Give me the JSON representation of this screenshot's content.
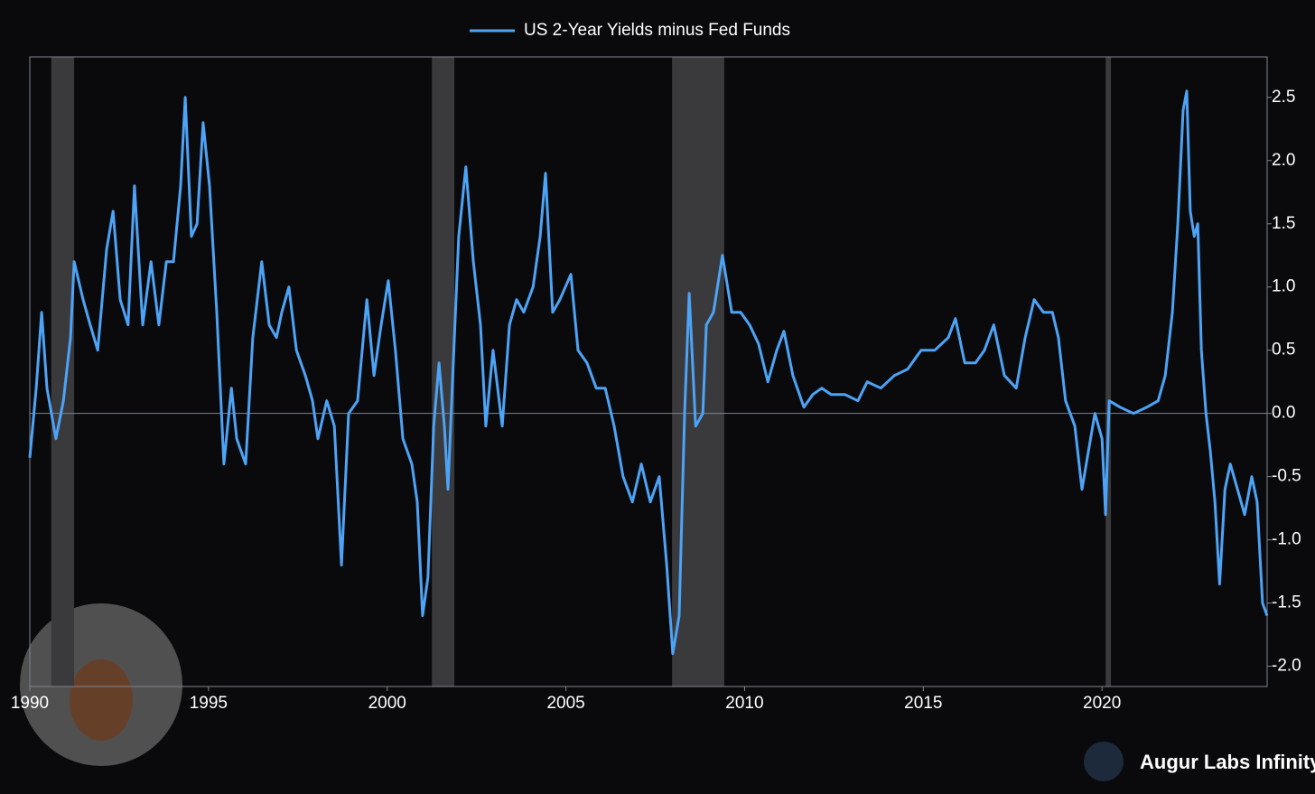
{
  "chart_data": {
    "type": "line",
    "legend": "top",
    "series": [
      {
        "name": "US 2-Year Yields minus Fed Funds",
        "color": "#4da3f5",
        "x": [
          1990.0,
          1990.18,
          1990.33,
          1990.48,
          1990.73,
          1990.94,
          1991.14,
          1991.24,
          1991.49,
          1991.69,
          1991.9,
          1992.15,
          1992.33,
          1992.53,
          1992.75,
          1992.93,
          1993.16,
          1993.39,
          1993.61,
          1993.82,
          1994.02,
          1994.22,
          1994.35,
          1994.52,
          1994.68,
          1994.85,
          1995.03,
          1995.23,
          1995.43,
          1995.64,
          1995.79,
          1996.04,
          1996.24,
          1996.49,
          1996.7,
          1996.9,
          1997.05,
          1997.25,
          1997.46,
          1997.71,
          1997.91,
          1998.06,
          1998.31,
          1998.52,
          1998.72,
          1998.92,
          1999.17,
          1999.43,
          1999.63,
          1999.83,
          2000.03,
          2000.23,
          2000.44,
          2000.69,
          2000.84,
          2000.99,
          2001.14,
          2001.3,
          2001.45,
          2001.6,
          2001.7,
          2001.85,
          2002.0,
          2002.2,
          2002.41,
          2002.61,
          2002.76,
          2002.96,
          2003.22,
          2003.42,
          2003.62,
          2003.82,
          2004.08,
          2004.28,
          2004.43,
          2004.63,
          2004.83,
          2005.14,
          2005.34,
          2005.59,
          2005.85,
          2006.1,
          2006.35,
          2006.6,
          2006.86,
          2007.11,
          2007.36,
          2007.61,
          2007.82,
          2007.99,
          2008.17,
          2008.32,
          2008.45,
          2008.63,
          2008.83,
          2008.93,
          2009.13,
          2009.38,
          2009.64,
          2009.89,
          2010.14,
          2010.39,
          2010.65,
          2010.9,
          2011.1,
          2011.35,
          2011.66,
          2011.91,
          2012.16,
          2012.42,
          2012.8,
          2013.17,
          2013.43,
          2013.81,
          2014.19,
          2014.56,
          2014.94,
          2015.32,
          2015.7,
          2015.9,
          2016.16,
          2016.46,
          2016.71,
          2016.97,
          2017.27,
          2017.6,
          2017.85,
          2018.1,
          2018.36,
          2018.61,
          2018.78,
          2018.98,
          2019.24,
          2019.44,
          2019.62,
          2019.8,
          2020.0,
          2020.1,
          2020.2,
          2020.5,
          2020.88,
          2021.26,
          2021.57,
          2021.77,
          2021.97,
          2022.12,
          2022.27,
          2022.37,
          2022.47,
          2022.58,
          2022.68,
          2022.78,
          2022.91,
          2023.03,
          2023.16,
          2023.29,
          2023.44,
          2023.59,
          2023.79,
          2023.99,
          2024.19,
          2024.34,
          2024.49,
          2024.62
        ],
        "values": [
          -0.35,
          0.2,
          0.8,
          0.2,
          -0.2,
          0.1,
          0.6,
          1.2,
          0.9,
          0.7,
          0.5,
          1.3,
          1.6,
          0.9,
          0.7,
          1.8,
          0.7,
          1.2,
          0.7,
          1.2,
          1.2,
          1.8,
          2.5,
          1.4,
          1.5,
          2.3,
          1.8,
          0.8,
          -0.4,
          0.2,
          -0.2,
          -0.4,
          0.6,
          1.2,
          0.7,
          0.6,
          0.8,
          1.0,
          0.5,
          0.3,
          0.1,
          -0.2,
          0.1,
          -0.1,
          -1.2,
          0.0,
          0.1,
          0.9,
          0.3,
          0.7,
          1.05,
          0.5,
          -0.2,
          -0.4,
          -0.7,
          -1.6,
          -1.3,
          -0.1,
          0.4,
          -0.1,
          -0.6,
          0.4,
          1.4,
          1.95,
          1.2,
          0.7,
          -0.1,
          0.5,
          -0.1,
          0.7,
          0.9,
          0.8,
          1.0,
          1.4,
          1.9,
          0.8,
          0.9,
          1.1,
          0.5,
          0.4,
          0.2,
          0.2,
          -0.1,
          -0.5,
          -0.7,
          -0.4,
          -0.7,
          -0.5,
          -1.2,
          -1.9,
          -1.6,
          0.0,
          0.95,
          -0.1,
          0.0,
          0.7,
          0.8,
          1.25,
          0.8,
          0.8,
          0.7,
          0.55,
          0.25,
          0.5,
          0.65,
          0.3,
          0.05,
          0.15,
          0.2,
          0.15,
          0.15,
          0.1,
          0.25,
          0.2,
          0.3,
          0.35,
          0.5,
          0.5,
          0.6,
          0.75,
          0.4,
          0.4,
          0.5,
          0.7,
          0.3,
          0.2,
          0.6,
          0.9,
          0.8,
          0.8,
          0.6,
          0.1,
          -0.1,
          -0.6,
          -0.3,
          0.0,
          -0.2,
          -0.8,
          0.1,
          0.05,
          0.0,
          0.05,
          0.1,
          0.3,
          0.8,
          1.5,
          2.4,
          2.55,
          1.6,
          1.4,
          1.5,
          0.5,
          0.0,
          -0.3,
          -0.7,
          -1.35,
          -0.6,
          -0.4,
          -0.6,
          -0.8,
          -0.5,
          -0.7,
          -1.5,
          -1.6
        ]
      }
    ],
    "shaded_periods": [
      [
        1990.6,
        1991.24
      ],
      [
        2001.25,
        2001.88
      ],
      [
        2007.97,
        2009.43
      ],
      [
        2020.1,
        2020.25
      ]
    ],
    "xlim": [
      1990,
      2024.62
    ],
    "xticks": [
      1990,
      1995,
      2000,
      2005,
      2010,
      2015,
      2020
    ],
    "ylim": [
      -2.16,
      2.82
    ],
    "yticks": [
      {
        "value": -2,
        "label": "-2.0"
      },
      -1.5,
      {
        "value": -1,
        "label": "-1.0"
      },
      -0.5,
      {
        "value": 0,
        "label": "0.0"
      },
      0.5,
      {
        "value": 1,
        "label": "1.0"
      },
      1.5,
      {
        "value": 2,
        "label": "2.0"
      },
      2.5
    ],
    "watermark": "Augur Labs Infinity"
  }
}
